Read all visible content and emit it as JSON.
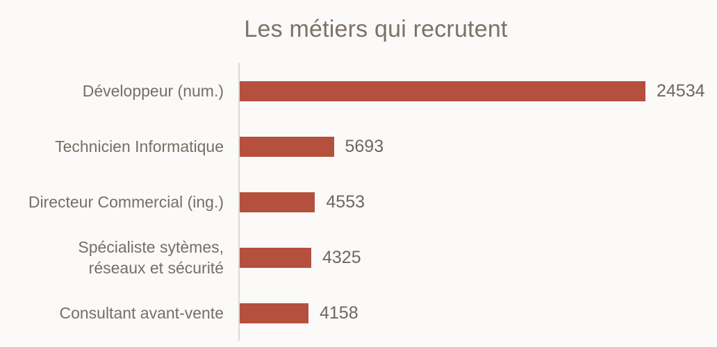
{
  "title": "Les métiers qui recrutent",
  "colors": {
    "background": "#FBFAF8",
    "bar": "#B6503E",
    "axis_line": "#DCDAD6",
    "title_text": "#7B7268",
    "label_text": "#766E66",
    "value_text": "#6D6761"
  },
  "chart_data": {
    "type": "bar",
    "orientation": "horizontal",
    "title": "Les métiers qui recrutent",
    "categories": [
      "Développeur (num.)",
      "Technicien Informatique",
      "Directeur Commercial (ing.)",
      "Spécialiste sytèmes,\nréseaux et sécurité",
      "Consultant avant-vente"
    ],
    "values": [
      24534,
      5693,
      4553,
      4325,
      4158
    ],
    "value_labels": [
      "24534",
      "5693",
      "4553",
      "4325",
      "4158"
    ],
    "xlim": [
      0,
      25000
    ],
    "grid": false,
    "legend": false,
    "axis_ticks": "none",
    "data_labels": "end-of-bar"
  }
}
